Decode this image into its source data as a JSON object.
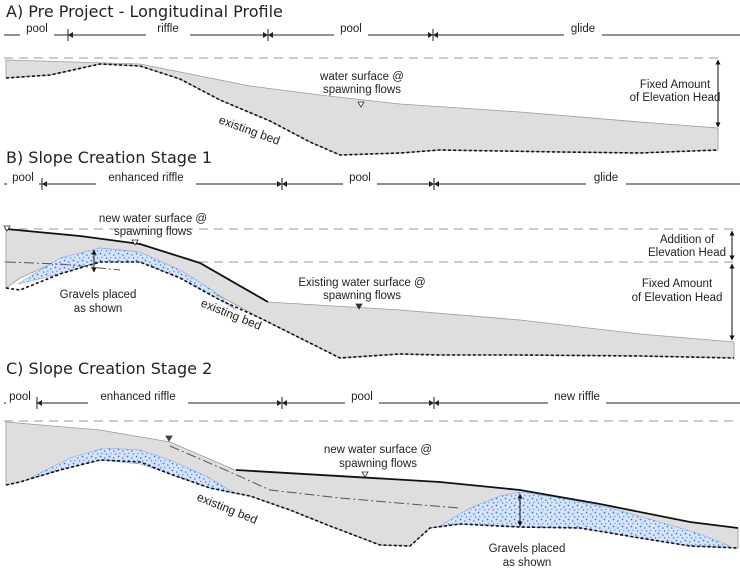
{
  "panels": [
    {
      "title": "A) Pre Project - Longitudinal Profile",
      "segments": [
        "pool",
        "riffle",
        "pool",
        "glide"
      ],
      "water_surface_label": [
        "water surface @",
        "spawning flows"
      ],
      "bed_label": "existing bed",
      "head_label": [
        "Fixed Amount",
        "of Elevation Head"
      ]
    },
    {
      "title": "B) Slope Creation Stage 1",
      "segments": [
        "pool",
        "enhanced riffle",
        "pool",
        "glide"
      ],
      "new_water_surface_label": [
        "new water surface @",
        "spawning flows"
      ],
      "existing_water_surface_label": [
        "Existing water surface @",
        "spawning flows"
      ],
      "gravel_label": [
        "Gravels placed",
        "as shown"
      ],
      "bed_label": "existing bed",
      "addition_head_label": [
        "Addition of",
        "Elevation Head"
      ],
      "fixed_head_label": [
        "Fixed Amount",
        "of Elevation Head"
      ]
    },
    {
      "title": "C) Slope Creation Stage 2",
      "segments": [
        "pool",
        "enhanced riffle",
        "pool",
        "new riffle"
      ],
      "new_water_surface_label": [
        "new water surface @",
        "spawning flows"
      ],
      "gravel_label": [
        "Gravels placed",
        "as shown"
      ],
      "bed_label": "existing bed"
    }
  ],
  "colors": {
    "water": "#dedede",
    "gravel_fill": "#d6e4fa",
    "gravel_dot": "#3d74d4"
  }
}
